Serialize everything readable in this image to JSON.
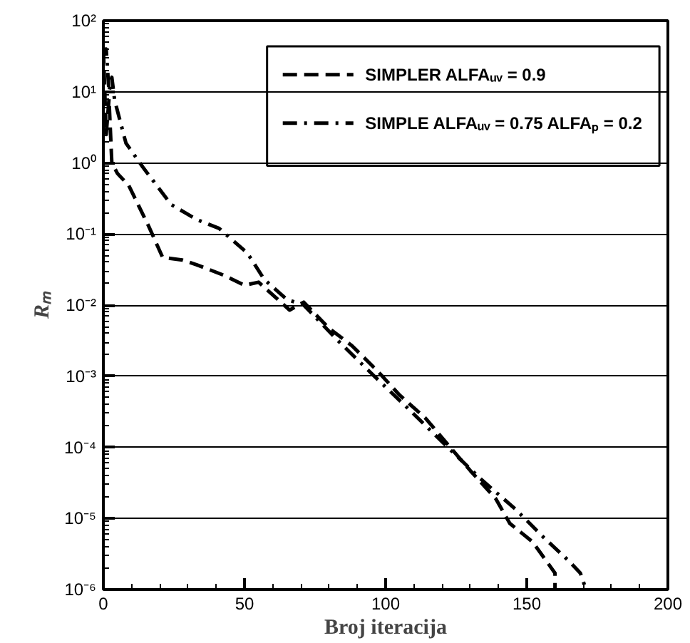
{
  "chart_data": {
    "type": "line",
    "xlabel": "Broj iteracija",
    "ylabel": "Rₘ",
    "xlim": [
      0,
      200
    ],
    "xticks": [
      0,
      50,
      100,
      150,
      200
    ],
    "ylim": [
      1e-06,
      100
    ],
    "log": "y",
    "yticks": [
      {
        "value": 1e-06,
        "label": "10⁻⁶"
      },
      {
        "value": 1e-05,
        "label": "10⁻⁵"
      },
      {
        "value": 0.0001,
        "label": "10⁻⁴"
      },
      {
        "value": 0.001,
        "label": "10⁻³"
      },
      {
        "value": 0.01,
        "label": "10⁻²"
      },
      {
        "value": 0.1,
        "label": "10⁻¹"
      },
      {
        "value": 1,
        "label": "10⁰"
      },
      {
        "value": 10,
        "label": "10¹"
      },
      {
        "value": 100,
        "label": "10²"
      }
    ],
    "grid": "y",
    "legend": "top right",
    "series": [
      {
        "name": "SIMPLER ALFAᵤᵥ = 0.9",
        "color": "#000000",
        "line_style": "dashed",
        "x": [
          0,
          1,
          2,
          3,
          5,
          9,
          16,
          21,
          28,
          33,
          43,
          50,
          55,
          66,
          71,
          80,
          88,
          97,
          105,
          114,
          122,
          130,
          139,
          144,
          152,
          157,
          160,
          160
        ],
        "values": [
          40,
          2.5,
          7.9,
          1.0,
          0.71,
          0.48,
          0.13,
          0.047,
          0.043,
          0.037,
          0.026,
          0.019,
          0.021,
          0.0085,
          0.011,
          0.0047,
          0.0027,
          0.0012,
          0.00054,
          0.00026,
          0.00011,
          4.7e-05,
          1.9e-05,
          8.5e-06,
          4.7e-06,
          2.5e-06,
          1.7e-06,
          1e-06
        ]
      },
      {
        "name": "SIMPLE ALFAᵤᵥ = 0.75 ALFAₚ = 0.2",
        "color": "#000000",
        "line_style": "dashdot",
        "x": [
          0,
          1,
          2,
          3,
          4,
          8,
          14,
          24,
          33,
          41,
          51,
          57,
          65,
          71,
          83,
          96,
          109,
          122,
          134,
          146,
          156,
          165,
          169,
          171
        ],
        "values": [
          32,
          40,
          10,
          16,
          7.6,
          1.9,
          0.87,
          0.26,
          0.16,
          0.12,
          0.054,
          0.023,
          0.012,
          0.01,
          0.0032,
          0.001,
          0.00032,
          0.0001,
          3.5e-05,
          1.35e-05,
          5.4e-06,
          2.5e-06,
          1.7e-06,
          1e-06
        ]
      }
    ]
  }
}
